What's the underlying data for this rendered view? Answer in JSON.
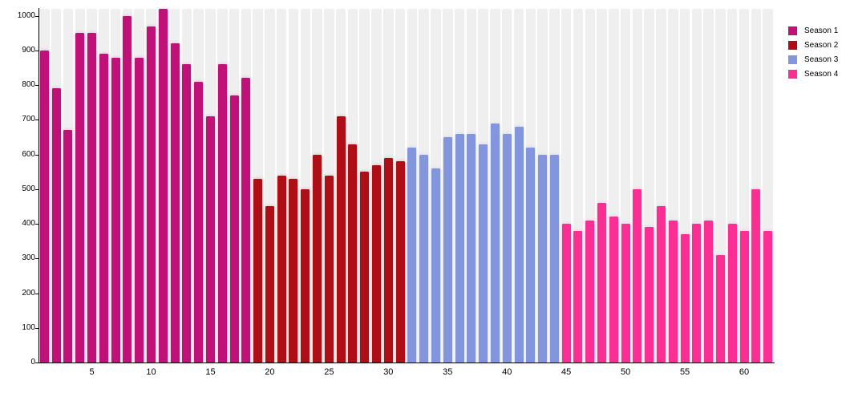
{
  "chart_data": {
    "type": "bar",
    "title": "",
    "xlabel": "",
    "ylabel": "",
    "x_unit": "episode-number",
    "x_range": [
      1,
      62
    ],
    "ylim": [
      0,
      1020
    ],
    "y_ticks": [
      0,
      100,
      200,
      300,
      400,
      500,
      600,
      700,
      800,
      900,
      1000
    ],
    "x_ticks": [
      5,
      10,
      15,
      20,
      25,
      30,
      35,
      40,
      45,
      50,
      55,
      60
    ],
    "grid": false,
    "plot_background": "per-bar-gray-bands",
    "band_color": "#efeff0",
    "legend_position": "top-right",
    "series": [
      {
        "name": "Season 1",
        "color": "#c01179",
        "start_episode": 1,
        "values": [
          900,
          790,
          670,
          950,
          950,
          890,
          880,
          1000,
          880,
          970,
          1020,
          920,
          860,
          810,
          710,
          860,
          770,
          820
        ]
      },
      {
        "name": "Season 2",
        "color": "#ae0e15",
        "start_episode": 19,
        "values": [
          530,
          450,
          540,
          530,
          500,
          600,
          540,
          710,
          630,
          550,
          570,
          590,
          580
        ]
      },
      {
        "name": "Season 3",
        "color": "#8295dd",
        "start_episode": 32,
        "values": [
          620,
          600,
          560,
          650,
          660,
          660,
          630,
          690,
          660,
          680,
          620,
          600,
          600
        ]
      },
      {
        "name": "Season 4",
        "color": "#fb2e94",
        "start_episode": 45,
        "values": [
          400,
          380,
          410,
          460,
          420,
          400,
          500,
          390,
          450,
          410,
          370,
          400,
          410,
          310,
          400,
          380,
          500,
          380
        ]
      }
    ]
  },
  "legend": {
    "items": [
      {
        "label": "Season 1",
        "color": "#c01179"
      },
      {
        "label": "Season 2",
        "color": "#ae0e15"
      },
      {
        "label": "Season 3",
        "color": "#8295dd"
      },
      {
        "label": "Season 4",
        "color": "#fb2e94"
      }
    ]
  }
}
